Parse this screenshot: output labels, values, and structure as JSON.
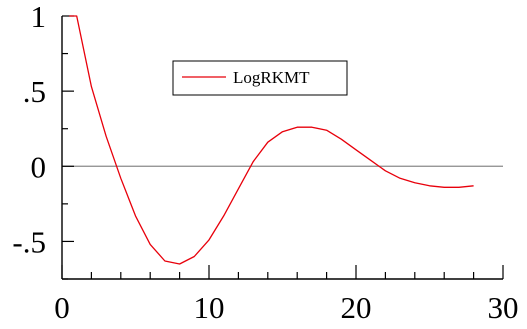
{
  "chart_data": {
    "type": "line",
    "title": "",
    "xlabel": "",
    "ylabel": "",
    "xlim": [
      0,
      30
    ],
    "ylim": [
      -0.75,
      1
    ],
    "grid": false,
    "legend_position": "top-center",
    "reference_line_y": 0,
    "x_ticks": [
      {
        "value": 0,
        "label": "0"
      },
      {
        "value": 10,
        "label": "10"
      },
      {
        "value": 20,
        "label": "20"
      },
      {
        "value": 30,
        "label": "30"
      }
    ],
    "y_ticks": [
      {
        "value": 1,
        "label": "1"
      },
      {
        "value": 0.5,
        "label": ".5"
      },
      {
        "value": 0,
        "label": "0"
      },
      {
        "value": -0.5,
        "label": "-.5"
      }
    ],
    "series": [
      {
        "name": "LogRKMT",
        "color": "#e8000b",
        "x": [
          0.5,
          1,
          2,
          3,
          4,
          5,
          6,
          7,
          8,
          9,
          10,
          11,
          12,
          13,
          14,
          15,
          16,
          17,
          18,
          19,
          20,
          21,
          22,
          23,
          24,
          25,
          26,
          27,
          28
        ],
        "y": [
          1.0,
          1.0,
          0.53,
          0.2,
          -0.08,
          -0.33,
          -0.52,
          -0.63,
          -0.65,
          -0.6,
          -0.49,
          -0.33,
          -0.15,
          0.03,
          0.16,
          0.23,
          0.26,
          0.26,
          0.24,
          0.18,
          0.11,
          0.04,
          -0.03,
          -0.08,
          -0.11,
          -0.13,
          -0.14,
          -0.14,
          -0.13
        ]
      }
    ]
  }
}
